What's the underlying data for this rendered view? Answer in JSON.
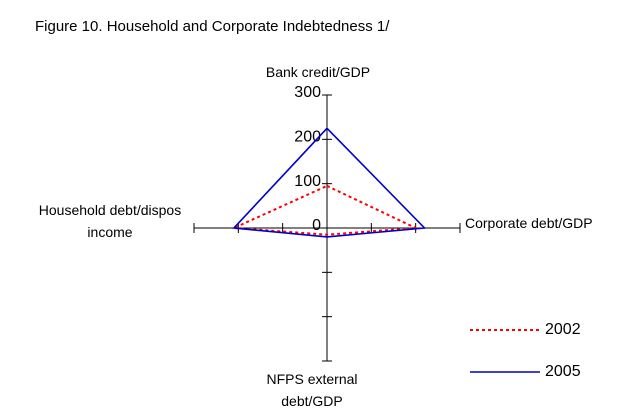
{
  "chart_data": {
    "type": "radar",
    "title": "Figure 10. Household and Corporate Indebtedness 1/",
    "categories": [
      "Bank credit/GDP",
      "Corporate debt/GDP",
      "NFPS external debt/GDP",
      "Household debt/dispos income"
    ],
    "series": [
      {
        "name": "2002",
        "color": "#ff0000",
        "dash": true,
        "values": [
          95,
          200,
          15,
          210
        ]
      },
      {
        "name": "2005",
        "color": "#0000cc",
        "dash": false,
        "values": [
          225,
          220,
          20,
          210
        ]
      }
    ],
    "ylim": [
      0,
      300
    ],
    "yticks": [
      0,
      100,
      200,
      300
    ]
  }
}
